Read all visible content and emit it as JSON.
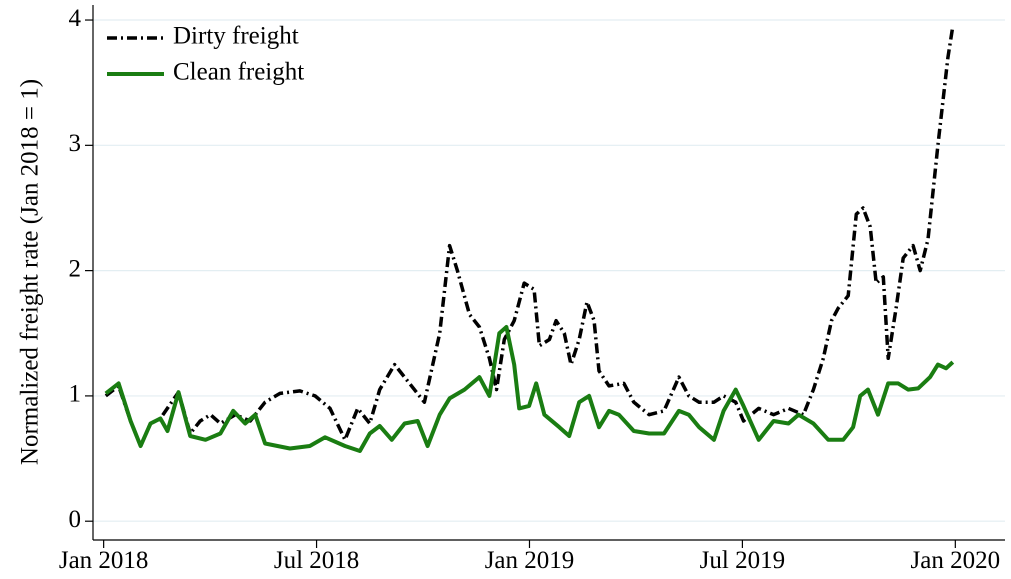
{
  "chart_data": {
    "type": "line",
    "y_label": "Normalized freight rate (Jan 2018 = 1)",
    "xlim": [
      -0.3,
      25.4
    ],
    "ylim": [
      -0.15,
      4.12
    ],
    "xticks": [
      {
        "value": 0,
        "label": "Jan 2018"
      },
      {
        "value": 6,
        "label": "Jul 2018"
      },
      {
        "value": 12,
        "label": "Jan 2019"
      },
      {
        "value": 18,
        "label": "Jul 2019"
      },
      {
        "value": 24,
        "label": "Jan 2020"
      }
    ],
    "yticks": [
      0,
      1,
      2,
      3,
      4
    ],
    "grid": true,
    "legend": "upper left",
    "series": [
      {
        "name": "Dirty freight",
        "color": "#000000",
        "dash": "dashdot",
        "x": [
          0.06,
          0.42,
          0.76,
          1.04,
          1.32,
          1.6,
          2.11,
          2.44,
          2.72,
          3.01,
          3.29,
          3.71,
          4.13,
          4.55,
          4.97,
          5.53,
          5.96,
          6.38,
          6.8,
          7.16,
          7.5,
          7.78,
          8.2,
          8.62,
          9.04,
          9.47,
          9.75,
          9.97,
          10.31,
          10.59,
          10.87,
          11.07,
          11.29,
          11.57,
          11.85,
          12.13,
          12.28,
          12.56,
          12.75,
          12.98,
          13.17,
          13.4,
          13.62,
          13.82,
          13.96,
          14.24,
          14.66,
          14.94,
          15.37,
          15.79,
          16.21,
          16.49,
          16.78,
          17.2,
          17.47,
          17.81,
          18.03,
          18.46,
          18.88,
          19.3,
          19.72,
          20,
          20.28,
          20.51,
          20.7,
          20.98,
          21.21,
          21.4,
          21.6,
          21.77,
          21.97,
          22.11,
          22.33,
          22.53,
          22.81,
          23.01,
          23.23,
          23.51,
          23.79,
          23.93
        ],
        "values": [
          1.0,
          1.08,
          0.8,
          0.6,
          0.78,
          0.82,
          1.03,
          0.7,
          0.8,
          0.85,
          0.78,
          0.85,
          0.8,
          0.95,
          1.02,
          1.04,
          1.0,
          0.9,
          0.65,
          0.9,
          0.78,
          1.05,
          1.25,
          1.1,
          0.95,
          1.5,
          2.2,
          2.0,
          1.65,
          1.55,
          1.3,
          1.05,
          1.45,
          1.6,
          1.9,
          1.85,
          1.4,
          1.45,
          1.6,
          1.5,
          1.25,
          1.45,
          1.75,
          1.6,
          1.2,
          1.08,
          1.1,
          0.95,
          0.85,
          0.88,
          1.15,
          1.0,
          0.95,
          0.95,
          1.0,
          0.95,
          0.8,
          0.9,
          0.85,
          0.9,
          0.85,
          1.05,
          1.3,
          1.6,
          1.7,
          1.8,
          2.45,
          2.5,
          2.35,
          1.9,
          1.95,
          1.3,
          1.7,
          2.1,
          2.2,
          2.0,
          2.25,
          3.0,
          3.7,
          3.95
        ]
      },
      {
        "name": "Clean freight",
        "color": "#1a7d12",
        "dash": "solid",
        "x": [
          0.06,
          0.42,
          0.76,
          1.04,
          1.32,
          1.6,
          1.8,
          2.11,
          2.44,
          2.87,
          3.29,
          3.65,
          3.99,
          4.27,
          4.55,
          5.25,
          5.81,
          6.24,
          6.8,
          7.22,
          7.5,
          7.78,
          8.12,
          8.48,
          8.85,
          9.13,
          9.47,
          9.75,
          10.17,
          10.59,
          10.87,
          11.15,
          11.35,
          11.57,
          11.71,
          11.99,
          12.19,
          12.42,
          12.84,
          13.12,
          13.4,
          13.68,
          13.96,
          14.24,
          14.52,
          14.94,
          15.37,
          15.79,
          16.21,
          16.49,
          16.78,
          17.2,
          17.47,
          17.81,
          18.03,
          18.46,
          18.88,
          19.3,
          19.58,
          20,
          20.42,
          20.84,
          21.12,
          21.32,
          21.54,
          21.82,
          22.11,
          22.39,
          22.67,
          22.95,
          23.29,
          23.51,
          23.74,
          23.93
        ],
        "values": [
          1.02,
          1.1,
          0.8,
          0.6,
          0.78,
          0.82,
          0.72,
          1.03,
          0.68,
          0.65,
          0.7,
          0.88,
          0.78,
          0.85,
          0.62,
          0.58,
          0.6,
          0.67,
          0.6,
          0.56,
          0.7,
          0.76,
          0.65,
          0.78,
          0.8,
          0.6,
          0.85,
          0.98,
          1.05,
          1.15,
          1.0,
          1.5,
          1.55,
          1.25,
          0.9,
          0.92,
          1.1,
          0.85,
          0.75,
          0.68,
          0.95,
          1.0,
          0.75,
          0.88,
          0.85,
          0.72,
          0.7,
          0.7,
          0.88,
          0.85,
          0.75,
          0.65,
          0.88,
          1.05,
          0.92,
          0.65,
          0.8,
          0.78,
          0.85,
          0.78,
          0.65,
          0.65,
          0.75,
          1.0,
          1.05,
          0.85,
          1.1,
          1.1,
          1.05,
          1.06,
          1.15,
          1.25,
          1.22,
          1.27
        ]
      }
    ]
  }
}
